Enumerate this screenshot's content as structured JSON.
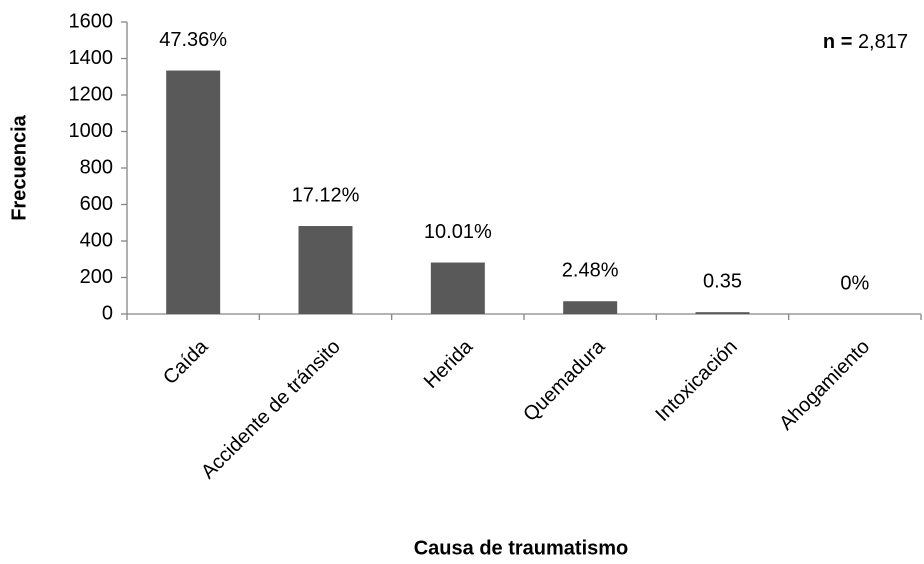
{
  "chart_data": {
    "type": "bar",
    "categories": [
      "Caída",
      "Accidente de tránsito",
      "Herida",
      "Quemadura",
      "Intoxicación",
      "Ahogamiento"
    ],
    "values": [
      1334,
      482,
      282,
      70,
      10,
      0
    ],
    "percentages": [
      47.36,
      17.12,
      10.01,
      2.48,
      0.35,
      0
    ],
    "percentage_labels": [
      "47.36%",
      "17.12%",
      "10.01%",
      "2.48%",
      "0.35",
      "0%"
    ],
    "color": "#595959",
    "ylim": [
      0,
      1600
    ],
    "yticks": [
      0,
      200,
      400,
      600,
      800,
      1000,
      1200,
      1400,
      1600
    ],
    "grid": false,
    "y_label": "Frecuencia",
    "x_label": "Causa de traumatismo",
    "annotation": {
      "prefix": "n =",
      "text": "2,817"
    }
  }
}
